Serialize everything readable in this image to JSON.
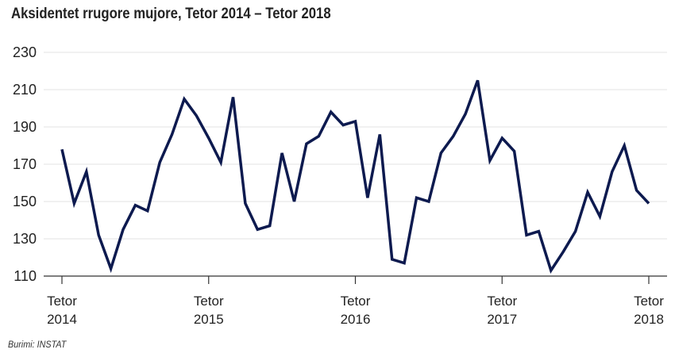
{
  "chart_data": {
    "type": "line",
    "title": "Aksidentet rrugore mujore, Tetor 2014 – Tetor 2018",
    "source": "Burimi: INSTAT",
    "xlabel": "",
    "ylabel": "",
    "ylim": [
      110,
      230
    ],
    "yticks": [
      110,
      130,
      150,
      170,
      190,
      210,
      230
    ],
    "xticks": [
      {
        "index": 0,
        "line1": "Tetor",
        "line2": "2014"
      },
      {
        "index": 12,
        "line1": "Tetor",
        "line2": "2015"
      },
      {
        "index": 24,
        "line1": "Tetor",
        "line2": "2016"
      },
      {
        "index": 36,
        "line1": "Tetor",
        "line2": "2017"
      },
      {
        "index": 48,
        "line1": "Tetor",
        "line2": "2018"
      }
    ],
    "grid": true,
    "series": [
      {
        "name": "Aksidentet rrugore",
        "color": "#0d1a4f",
        "values": [
          178,
          149,
          166,
          132,
          114,
          135,
          148,
          145,
          171,
          186,
          205,
          196,
          184,
          171,
          206,
          149,
          135,
          137,
          176,
          150,
          181,
          185,
          198,
          191,
          193,
          152,
          186,
          119,
          117,
          152,
          150,
          176,
          185,
          197,
          215,
          172,
          184,
          177,
          132,
          134,
          113,
          123,
          134,
          155,
          142,
          166,
          180,
          156,
          149
        ]
      }
    ]
  }
}
